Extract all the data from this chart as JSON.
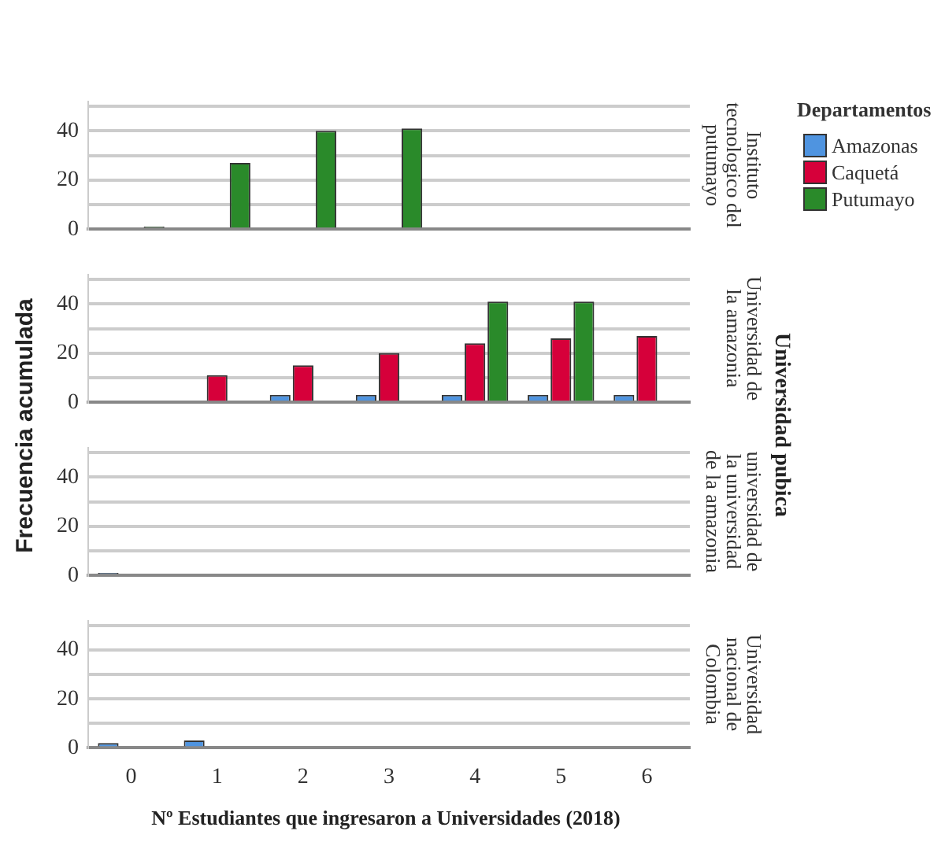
{
  "chart_data": [
    {
      "type": "bar",
      "y2label": "Instituto tecnologico del putumayo",
      "ylabel": "Frecuencia acumulada",
      "annotations": [
        "Universidad pubica"
      ],
      "legend_title": "Departamentos",
      "legend": "right",
      "grid": "y",
      "tick_labels": "y",
      "categories": [
        "0",
        "1",
        "2",
        "3",
        "4",
        "5",
        "6"
      ],
      "ylim": [
        0,
        52
      ],
      "yticks": [
        0,
        {
          "value": 10,
          "label": null
        },
        20,
        {
          "value": 30,
          "label": null
        },
        40,
        {
          "value": 50,
          "label": null
        }
      ],
      "series": [
        {
          "name": "Amazonas",
          "color": "#4f94e0",
          "values": [
            null,
            null,
            null,
            null,
            null,
            null,
            null
          ]
        },
        {
          "name": "Caquetá",
          "color": "#d6003a",
          "values": [
            0,
            null,
            null,
            null,
            null,
            null,
            null
          ]
        },
        {
          "name": "Putumayo",
          "color": "#2a8a2a",
          "values": [
            1,
            27,
            40,
            41,
            null,
            null,
            null
          ]
        }
      ]
    },
    {
      "type": "bar",
      "y2label": "Universidad de la amazonia",
      "grid": "y",
      "tick_labels": "y",
      "categories": [
        "0",
        "1",
        "2",
        "3",
        "4",
        "5",
        "6"
      ],
      "ylim": [
        0,
        52
      ],
      "yticks": [
        0,
        {
          "value": 10,
          "label": null
        },
        20,
        {
          "value": 30,
          "label": null
        },
        40,
        {
          "value": 50,
          "label": null
        }
      ],
      "series": [
        {
          "color": "#4f94e0",
          "values": [
            null,
            null,
            3,
            3,
            3,
            3,
            3
          ]
        },
        {
          "color": "#d6003a",
          "values": [
            null,
            11,
            15,
            20,
            24,
            26,
            27
          ]
        },
        {
          "color": "#2a8a2a",
          "values": [
            null,
            null,
            null,
            null,
            41,
            41,
            null
          ]
        }
      ]
    },
    {
      "type": "bar",
      "y2label": "universidad de la universidad de la amazonia",
      "grid": "y",
      "tick_labels": "y",
      "categories": [
        "0",
        "1",
        "2",
        "3",
        "4",
        "5",
        "6"
      ],
      "ylim": [
        0,
        52
      ],
      "yticks": [
        0,
        {
          "value": 10,
          "label": null
        },
        20,
        {
          "value": 30,
          "label": null
        },
        40,
        {
          "value": 50,
          "label": null
        }
      ],
      "series": [
        {
          "color": "#4f94e0",
          "values": [
            1,
            null,
            null,
            null,
            null,
            null,
            null
          ]
        },
        {
          "color": "#d6003a",
          "values": [
            null,
            null,
            null,
            null,
            null,
            null,
            null
          ]
        },
        {
          "color": "#2a8a2a",
          "values": [
            null,
            null,
            null,
            null,
            null,
            null,
            null
          ]
        }
      ]
    },
    {
      "type": "bar",
      "y2label": "Universidad nacional de Colombia",
      "xlabel": "Nº Estudiantes que ingresaron a Universidades (2018)",
      "grid": "y",
      "categories": [
        "0",
        "1",
        "2",
        "3",
        "4",
        "5",
        "6"
      ],
      "ylim": [
        0,
        52
      ],
      "yticks": [
        0,
        {
          "value": 10,
          "label": null
        },
        20,
        {
          "value": 30,
          "label": null
        },
        40,
        {
          "value": 50,
          "label": null
        }
      ],
      "series": [
        {
          "color": "#4f94e0",
          "values": [
            2,
            3,
            null,
            null,
            null,
            null,
            null
          ]
        },
        {
          "color": "#d6003a",
          "values": [
            null,
            null,
            null,
            null,
            null,
            null,
            null
          ]
        },
        {
          "color": "#2a8a2a",
          "values": [
            null,
            null,
            null,
            null,
            null,
            null,
            null
          ]
        }
      ]
    }
  ]
}
